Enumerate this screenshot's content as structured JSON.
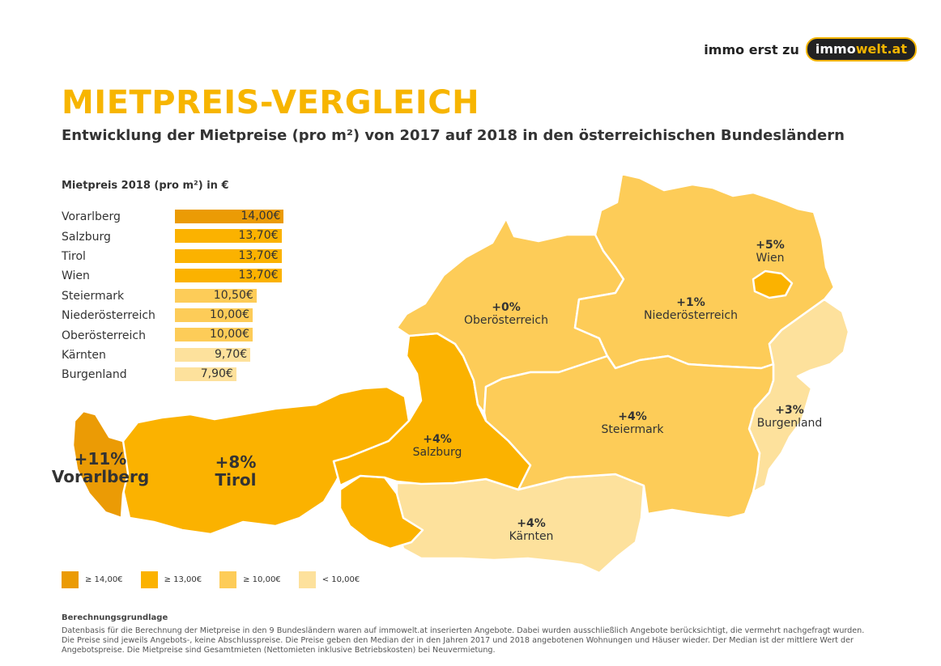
{
  "brand": {
    "tagline": "immo erst zu",
    "logo_part1": "immo",
    "logo_part2": "welt.at"
  },
  "title": "MIETPREIS-VERGLEICH",
  "subtitle": "Entwicklung der Mietpreise (pro m²) von 2017 auf 2018 in den österreichischen Bundesländern",
  "table": {
    "title": "Mietpreis 2018 (pro m²) in €",
    "rows": [
      {
        "name": "Vorarlberg",
        "value": 14.0,
        "label": "14,00€",
        "tier": "t1"
      },
      {
        "name": "Salzburg",
        "value": 13.7,
        "label": "13,70€",
        "tier": "t2"
      },
      {
        "name": "Tirol",
        "value": 13.7,
        "label": "13,70€",
        "tier": "t2"
      },
      {
        "name": "Wien",
        "value": 13.7,
        "label": "13,70€",
        "tier": "t2"
      },
      {
        "name": "Steiermark",
        "value": 10.5,
        "label": "10,50€",
        "tier": "t3"
      },
      {
        "name": "Niederösterreich",
        "value": 10.0,
        "label": "10,00€",
        "tier": "t3"
      },
      {
        "name": "Oberösterreich",
        "value": 10.0,
        "label": "10,00€",
        "tier": "t3"
      },
      {
        "name": "Kärnten",
        "value": 9.7,
        "label": "9,70€",
        "tier": "t4"
      },
      {
        "name": "Burgenland",
        "value": 7.9,
        "label": "7,90€",
        "tier": "t4"
      }
    ]
  },
  "colors": {
    "t1": "#eb9b05",
    "t2": "#fbb200",
    "t3": "#fdcc58",
    "t4": "#fde19c"
  },
  "regions": [
    {
      "id": "vorarlberg",
      "change": "+11%",
      "name": "Vorarlberg",
      "tier": "t1"
    },
    {
      "id": "tirol",
      "change": "+8%",
      "name": "Tirol",
      "tier": "t2"
    },
    {
      "id": "salzburg",
      "change": "+4%",
      "name": "Salzburg",
      "tier": "t2"
    },
    {
      "id": "oberoesterreich",
      "change": "+0%",
      "name": "Oberösterreich",
      "tier": "t3"
    },
    {
      "id": "niederoesterreich",
      "change": "+1%",
      "name": "Niederösterreich",
      "tier": "t3"
    },
    {
      "id": "wien",
      "change": "+5%",
      "name": "Wien",
      "tier": "t2"
    },
    {
      "id": "steiermark",
      "change": "+4%",
      "name": "Steiermark",
      "tier": "t3"
    },
    {
      "id": "kaernten",
      "change": "+4%",
      "name": "Kärnten",
      "tier": "t4"
    },
    {
      "id": "burgenland",
      "change": "+3%",
      "name": "Burgenland",
      "tier": "t4"
    }
  ],
  "legend": [
    {
      "label": "≥ 14,00€",
      "tier": "t1"
    },
    {
      "label": "≥ 13,00€",
      "tier": "t2"
    },
    {
      "label": "≥ 10,00€",
      "tier": "t3"
    },
    {
      "label": "< 10,00€",
      "tier": "t4"
    }
  ],
  "footer": {
    "title": "Berechnungsgrundlage",
    "text": "Datenbasis für die Berechnung der Mietpreise in den 9 Bundesländern waren auf immowelt.at inserierten Angebote. Dabei wurden ausschließlich Angebote berücksichtigt, die vermehrt nachgefragt wurden. Die Preise sind jeweils Angebots-, keine Abschlusspreise. Die Preise geben den Median der in den Jahren 2017 und 2018 angebotenen Wohnungen und Häuser wieder. Der Median ist der mittlere Wert der Angebotspreise. Die Mietpreise sind Gesamtmieten (Nettomieten inklusive Betriebskosten) bei Neuvermietung."
  }
}
